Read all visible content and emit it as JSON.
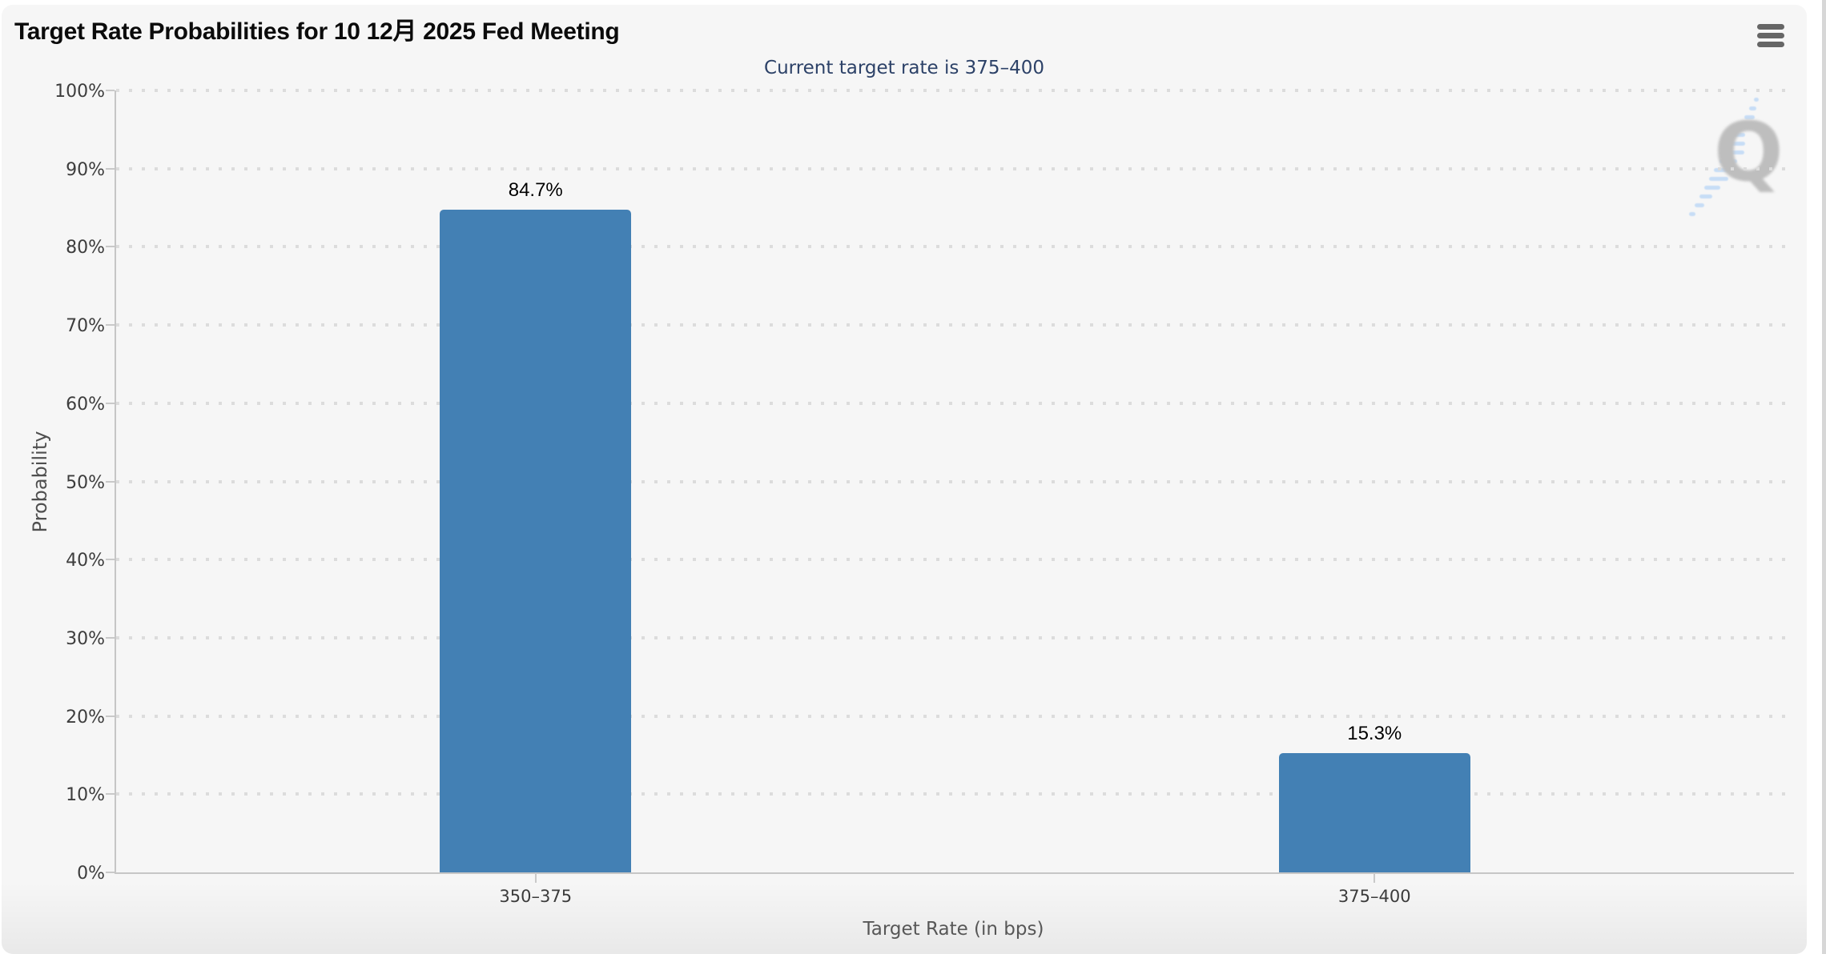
{
  "header": {
    "menu_icon": "hamburger-menu-icon"
  },
  "watermark": {
    "letter": "Q",
    "stripes_color": "#a9cdf6"
  },
  "chart_data": {
    "type": "bar",
    "title": "Target Rate Probabilities for 10 12月 2025 Fed Meeting",
    "subtitle": "Current target rate is 375–400",
    "categories": [
      "350–375",
      "375–400"
    ],
    "values": [
      84.7,
      15.3
    ],
    "data_labels": [
      "84.7%",
      "15.3%"
    ],
    "xlabel": "Target Rate (in bps)",
    "ylabel": "Probability",
    "ylim": [
      0,
      100
    ],
    "y_tick_step": 10,
    "y_tick_labels": [
      "0%",
      "10%",
      "20%",
      "30%",
      "40%",
      "50%",
      "60%",
      "70%",
      "80%",
      "90%",
      "100%"
    ],
    "grid": "dotted-horizontal",
    "legend": "none",
    "bar_color": "#4380b4",
    "subtitle_color": "#2d4268",
    "background_color": "#f6f6f6"
  }
}
